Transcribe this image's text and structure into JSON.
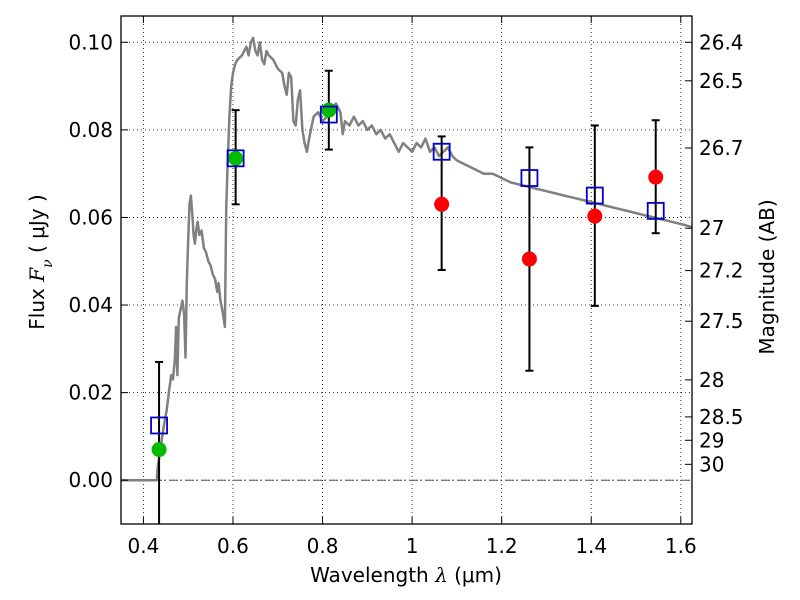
{
  "chart_data": {
    "type": "scatter",
    "xlabel": {
      "prefix": "Wavelength  ",
      "symbol": "λ",
      "unit": " (μm)"
    },
    "ylabel": {
      "prefix": "Flux  ",
      "symbol": "F",
      "subscript": "ν",
      "unit": "  ( μJy )"
    },
    "y2label": "Magnitude (AB)",
    "xlim": [
      0.35,
      1.625
    ],
    "ylim": [
      -0.01,
      0.106
    ],
    "x_ticks": [
      0.4,
      0.6,
      0.8,
      1.0,
      1.2,
      1.4,
      1.6
    ],
    "x_tick_labels": [
      "0.4",
      "0.6",
      "0.8",
      "1",
      "1.2",
      "1.4",
      "1.6"
    ],
    "y_ticks": [
      0.0,
      0.02,
      0.04,
      0.06,
      0.08,
      0.1
    ],
    "y_tick_labels": [
      "0.00",
      "0.02",
      "0.04",
      "0.06",
      "0.08",
      "0.10"
    ],
    "y2_ticks": [
      26.4,
      26.5,
      26.7,
      27,
      27.2,
      27.5,
      28,
      28.5,
      29,
      30
    ],
    "y2_tick_labels": [
      "26.4",
      "26.5",
      "26.7",
      "27",
      "27.2",
      "27.5",
      "28",
      "28.5",
      "29",
      "30"
    ],
    "grid": true,
    "zero_line": true,
    "colors": {
      "model": "#808080",
      "model_photometry": "#0000cc",
      "detections": "#00bb00",
      "non_detections": "#ff0000",
      "errorbar": "#000000"
    },
    "series": [
      {
        "kind": "line",
        "points": [
          [
            0.35,
            0.0
          ],
          [
            0.43,
            0.0
          ],
          [
            0.432,
            0.003
          ],
          [
            0.438,
            0.007
          ],
          [
            0.445,
            0.012
          ],
          [
            0.452,
            0.016
          ],
          [
            0.458,
            0.021
          ],
          [
            0.462,
            0.024
          ],
          [
            0.466,
            0.023
          ],
          [
            0.47,
            0.027
          ],
          [
            0.473,
            0.035
          ],
          [
            0.476,
            0.024
          ],
          [
            0.479,
            0.037
          ],
          [
            0.483,
            0.039
          ],
          [
            0.487,
            0.041
          ],
          [
            0.491,
            0.038
          ],
          [
            0.494,
            0.028
          ],
          [
            0.497,
            0.045
          ],
          [
            0.5,
            0.055
          ],
          [
            0.503,
            0.063
          ],
          [
            0.506,
            0.065
          ],
          [
            0.509,
            0.061
          ],
          [
            0.512,
            0.056
          ],
          [
            0.515,
            0.054
          ],
          [
            0.518,
            0.057
          ],
          [
            0.521,
            0.059
          ],
          [
            0.525,
            0.056
          ],
          [
            0.53,
            0.057
          ],
          [
            0.535,
            0.053
          ],
          [
            0.54,
            0.052
          ],
          [
            0.545,
            0.05
          ],
          [
            0.55,
            0.049
          ],
          [
            0.555,
            0.047
          ],
          [
            0.56,
            0.046
          ],
          [
            0.565,
            0.043
          ],
          [
            0.568,
            0.045
          ],
          [
            0.572,
            0.041
          ],
          [
            0.576,
            0.039
          ],
          [
            0.579,
            0.037
          ],
          [
            0.582,
            0.035
          ],
          [
            0.585,
            0.062
          ],
          [
            0.588,
            0.072
          ],
          [
            0.592,
            0.083
          ],
          [
            0.596,
            0.09
          ],
          [
            0.6,
            0.093
          ],
          [
            0.605,
            0.095
          ],
          [
            0.61,
            0.096
          ],
          [
            0.62,
            0.097
          ],
          [
            0.63,
            0.099
          ],
          [
            0.635,
            0.097
          ],
          [
            0.64,
            0.1
          ],
          [
            0.645,
            0.101
          ],
          [
            0.65,
            0.098
          ],
          [
            0.655,
            0.097
          ],
          [
            0.66,
            0.1
          ],
          [
            0.665,
            0.096
          ],
          [
            0.67,
            0.095
          ],
          [
            0.675,
            0.098
          ],
          [
            0.68,
            0.097
          ],
          [
            0.69,
            0.096
          ],
          [
            0.7,
            0.094
          ],
          [
            0.71,
            0.093
          ],
          [
            0.715,
            0.09
          ],
          [
            0.72,
            0.088
          ],
          [
            0.725,
            0.093
          ],
          [
            0.73,
            0.092
          ],
          [
            0.735,
            0.082
          ],
          [
            0.74,
            0.081
          ],
          [
            0.745,
            0.087
          ],
          [
            0.75,
            0.089
          ],
          [
            0.755,
            0.08
          ],
          [
            0.76,
            0.077
          ],
          [
            0.765,
            0.075
          ],
          [
            0.77,
            0.078
          ],
          [
            0.78,
            0.083
          ],
          [
            0.79,
            0.084
          ],
          [
            0.8,
            0.082
          ],
          [
            0.81,
            0.083
          ],
          [
            0.82,
            0.085
          ],
          [
            0.83,
            0.086
          ],
          [
            0.84,
            0.084
          ],
          [
            0.845,
            0.079
          ],
          [
            0.85,
            0.082
          ],
          [
            0.86,
            0.081
          ],
          [
            0.87,
            0.083
          ],
          [
            0.88,
            0.081
          ],
          [
            0.89,
            0.082
          ],
          [
            0.9,
            0.08
          ],
          [
            0.91,
            0.081
          ],
          [
            0.92,
            0.079
          ],
          [
            0.93,
            0.08
          ],
          [
            0.94,
            0.078
          ],
          [
            0.95,
            0.079
          ],
          [
            0.96,
            0.077
          ],
          [
            0.97,
            0.075
          ],
          [
            0.98,
            0.077
          ],
          [
            0.99,
            0.076
          ],
          [
            1.0,
            0.075
          ],
          [
            1.01,
            0.077
          ],
          [
            1.02,
            0.076
          ],
          [
            1.03,
            0.078
          ],
          [
            1.04,
            0.075
          ],
          [
            1.05,
            0.076
          ],
          [
            1.06,
            0.074
          ],
          [
            1.07,
            0.075
          ],
          [
            1.08,
            0.076
          ],
          [
            1.09,
            0.074
          ],
          [
            1.1,
            0.073
          ],
          [
            1.12,
            0.072
          ],
          [
            1.14,
            0.071
          ],
          [
            1.16,
            0.07
          ],
          [
            1.18,
            0.07
          ],
          [
            1.2,
            0.069
          ],
          [
            1.22,
            0.068
          ],
          [
            1.24,
            0.0675
          ],
          [
            1.26,
            0.067
          ],
          [
            1.28,
            0.0665
          ],
          [
            1.3,
            0.066
          ],
          [
            1.32,
            0.0655
          ],
          [
            1.34,
            0.065
          ],
          [
            1.36,
            0.0645
          ],
          [
            1.38,
            0.064
          ],
          [
            1.4,
            0.0635
          ],
          [
            1.42,
            0.063
          ],
          [
            1.44,
            0.0625
          ],
          [
            1.46,
            0.062
          ],
          [
            1.48,
            0.0615
          ],
          [
            1.5,
            0.061
          ],
          [
            1.52,
            0.0605
          ],
          [
            1.54,
            0.06
          ],
          [
            1.56,
            0.0595
          ],
          [
            1.58,
            0.059
          ],
          [
            1.6,
            0.0585
          ],
          [
            1.625,
            0.0578
          ]
        ]
      },
      {
        "kind": "model_photometry",
        "marker": "open-square",
        "x": [
          0.435,
          0.606,
          0.814,
          1.066,
          1.262,
          1.408,
          1.544
        ],
        "y": [
          0.0125,
          0.0735,
          0.0835,
          0.075,
          0.069,
          0.065,
          0.0615
        ]
      },
      {
        "kind": "detections",
        "marker": "filled-circle",
        "x": [
          0.435,
          0.606,
          0.814
        ],
        "y": [
          0.007,
          0.0735,
          0.0845
        ],
        "yerr_low": [
          0.017,
          0.0105,
          0.009
        ],
        "yerr_high": [
          0.02,
          0.011,
          0.009
        ]
      },
      {
        "kind": "non_detections",
        "marker": "filled-circle",
        "x": [
          1.066,
          1.262,
          1.408,
          1.544
        ],
        "y": [
          0.063,
          0.0505,
          0.0603,
          0.0692
        ],
        "yerr_low": [
          0.015,
          0.0255,
          0.0205,
          0.0128
        ],
        "yerr_high": [
          0.0155,
          0.0255,
          0.0207,
          0.013
        ]
      }
    ]
  }
}
